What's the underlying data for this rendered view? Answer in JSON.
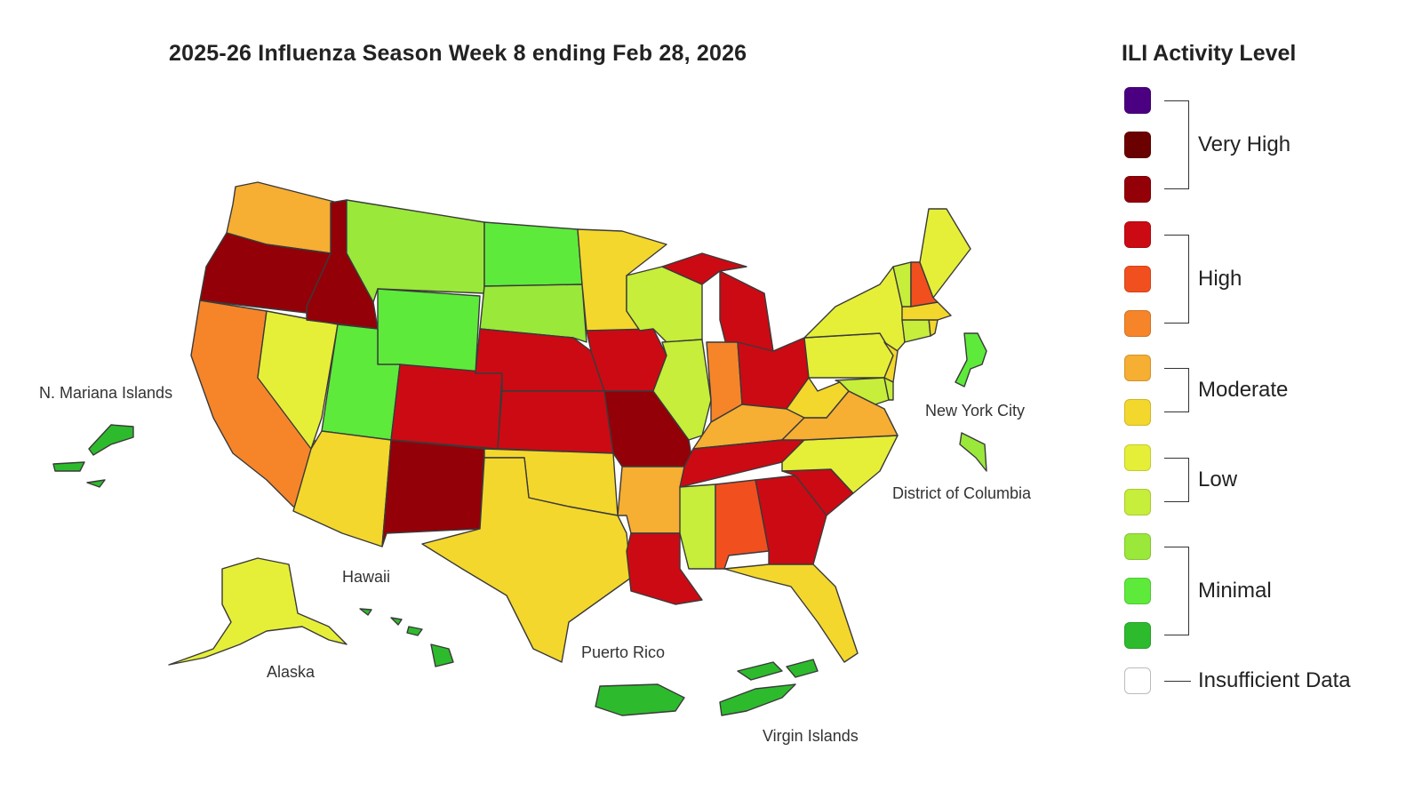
{
  "title": "2025-26 Influenza Season Week 8 ending Feb 28, 2026",
  "legend": {
    "title": "ILI Activity Level",
    "levels": [
      {
        "level": 13,
        "color": "#4b0082"
      },
      {
        "level": 12,
        "color": "#6b0000"
      },
      {
        "level": 11,
        "color": "#930008"
      },
      {
        "level": 10,
        "color": "#cc0a14"
      },
      {
        "level": 9,
        "color": "#f24f1f"
      },
      {
        "level": 8,
        "color": "#f6852a"
      },
      {
        "level": 7,
        "color": "#f6ae33"
      },
      {
        "level": 6,
        "color": "#f4d72c"
      },
      {
        "level": 5,
        "color": "#e6ef38"
      },
      {
        "level": 4,
        "color": "#c6ee3a"
      },
      {
        "level": 3,
        "color": "#9ae83a"
      },
      {
        "level": 2,
        "color": "#5eea3b"
      },
      {
        "level": 1,
        "color": "#2dbb2d"
      }
    ],
    "groups": [
      {
        "label": "Very High",
        "levels": [
          13,
          11
        ]
      },
      {
        "label": "High",
        "levels": [
          10,
          8
        ]
      },
      {
        "label": "Moderate",
        "levels": [
          7,
          6
        ]
      },
      {
        "label": "Low",
        "levels": [
          5,
          4
        ]
      },
      {
        "label": "Minimal",
        "levels": [
          3,
          1
        ]
      }
    ],
    "insufficient": {
      "label": "Insufficient Data",
      "color": "#ffffff"
    }
  },
  "jurisdictions": {
    "WA": 7,
    "OR": 11,
    "CA": 8,
    "NV": 5,
    "ID": 11,
    "MT": 3,
    "WY": 2,
    "UT": 2,
    "AZ": 6,
    "CO": 10,
    "NM": 11,
    "ND": 2,
    "SD": 3,
    "NE": 10,
    "KS": 10,
    "OK": 6,
    "TX": 6,
    "MN": 6,
    "IA": 10,
    "MO": 11,
    "AR": 7,
    "LA": 10,
    "WI": 4,
    "IL": 4,
    "MI": 10,
    "IN": 8,
    "OH": 10,
    "KY": 7,
    "TN": 10,
    "MS": 4,
    "AL": 9,
    "GA": 10,
    "FL": 6,
    "SC": 10,
    "NC": 5,
    "VA": 7,
    "WV": 6,
    "PA": 5,
    "NY": 5,
    "NJ": 6,
    "MD": 4,
    "DE": 4,
    "CT": 4,
    "RI": 6,
    "MA": 6,
    "VT": 4,
    "NH": 9,
    "ME": 5,
    "AK": 5,
    "HI": 1,
    "PR": 1,
    "VI": 1,
    "MP": 1,
    "NYC": 2,
    "DC": 3
  },
  "labels": {
    "MP": "N. Mariana Islands",
    "NYC": "New York City",
    "DC": "District of Columbia",
    "HI": "Hawaii",
    "AK": "Alaska",
    "PR": "Puerto Rico",
    "VI": "Virgin Islands"
  }
}
